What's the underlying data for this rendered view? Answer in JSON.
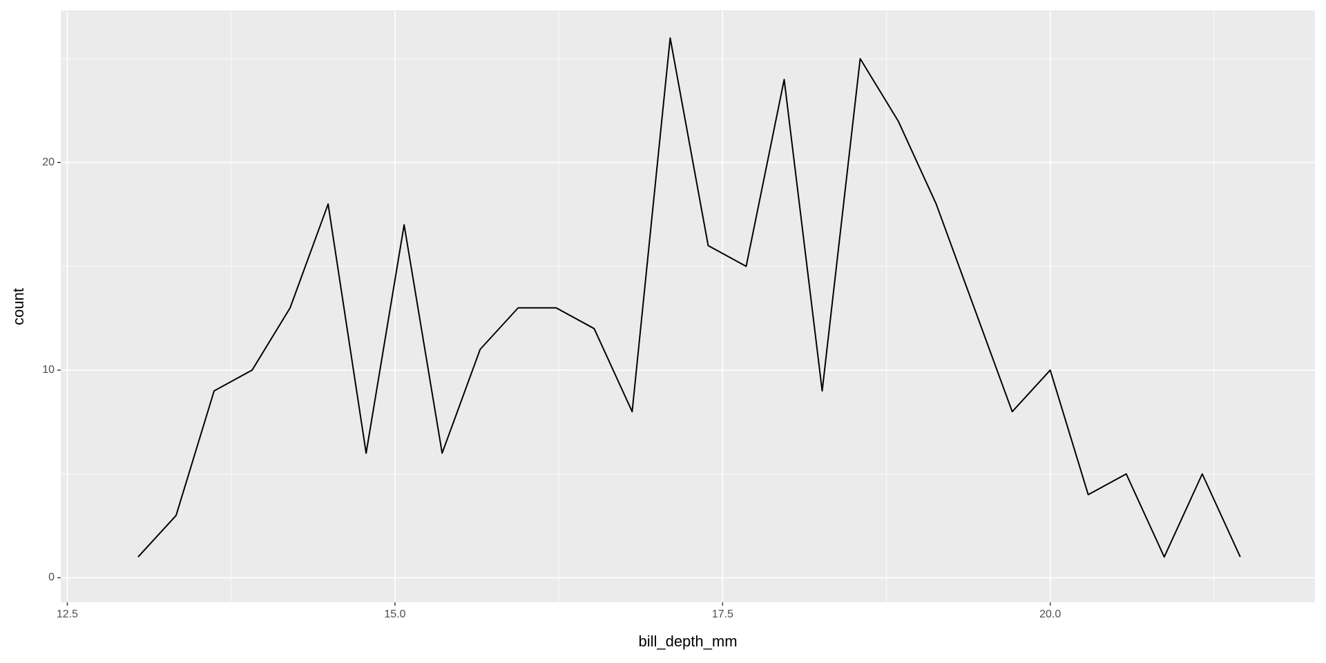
{
  "chart_data": {
    "type": "line",
    "x_label": "bill_depth_mm",
    "y_label": "count",
    "x": [
      13.04,
      13.33,
      13.62,
      13.91,
      14.2,
      14.49,
      14.78,
      15.07,
      15.36,
      15.65,
      15.94,
      16.23,
      16.52,
      16.81,
      17.1,
      17.39,
      17.68,
      17.97,
      18.26,
      18.55,
      18.84,
      19.13,
      19.42,
      19.71,
      20.0,
      20.29,
      20.58,
      20.87,
      21.16,
      21.45
    ],
    "values": [
      1,
      3,
      9,
      10,
      13,
      18,
      6,
      17,
      6,
      11,
      13,
      13,
      12,
      8,
      26,
      16,
      15,
      24,
      9,
      25,
      22,
      18,
      13,
      8,
      10,
      4,
      5,
      1,
      5,
      1
    ],
    "color": "#000000",
    "xlim": [
      12.45,
      22.02
    ],
    "ylim": [
      -1.18,
      27.33
    ],
    "xticks": [
      {
        "value": 12.5,
        "label": "12.5"
      },
      {
        "value": 15,
        "label": "15.0"
      },
      {
        "value": 17.5,
        "label": "17.5"
      },
      {
        "value": 20,
        "label": "20.0"
      }
    ],
    "yticks": [
      0,
      10,
      20
    ],
    "x_minor_grid": [
      13.75,
      16.25,
      18.75,
      21.25
    ],
    "y_minor_grid": [
      5,
      15,
      25
    ],
    "grid": true
  }
}
